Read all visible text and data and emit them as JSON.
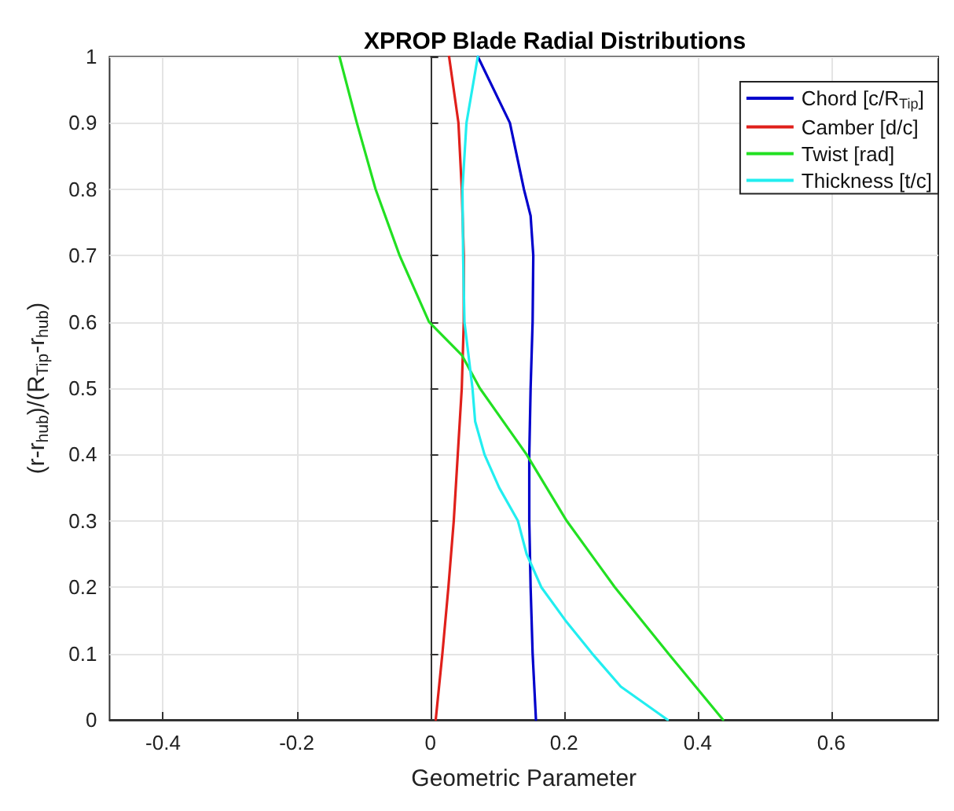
{
  "chart_data": {
    "type": "line",
    "title": "XPROP Blade Radial Distributions",
    "xlabel": "Geometric Parameter",
    "ylabel": "(r-r$_{hub}$)/(R$_{Tip}$-r$_{hub}$)",
    "xlim": [
      -0.48,
      0.76
    ],
    "xticks": [
      -0.4,
      -0.2,
      0,
      0.2,
      0.4,
      0.6
    ],
    "ylim": [
      0,
      1
    ],
    "yticks": [
      0,
      0.1,
      0.2,
      0.3,
      0.4,
      0.5,
      0.6,
      0.7,
      0.8,
      0.9,
      1
    ],
    "grid": true,
    "legend": "top right",
    "marker": "none",
    "line_style": "solid",
    "series": [
      {
        "name": "Chord [c/R$_{Tip}$]",
        "color": "#0000cc",
        "x": [
          0.158,
          0.153,
          0.15,
          0.148,
          0.148,
          0.15,
          0.153,
          0.154,
          0.15,
          0.14,
          0.119,
          0.071
        ],
        "values": [
          0,
          0.1,
          0.2,
          0.3,
          0.4,
          0.5,
          0.6,
          0.7,
          0.76,
          0.8,
          0.9,
          1
        ]
      },
      {
        "name": "Camber [d/c]",
        "color": "#e0201b",
        "x": [
          0.008,
          0.018,
          0.027,
          0.035,
          0.041,
          0.047,
          0.05,
          0.05,
          0.047,
          0.042,
          0.028
        ],
        "values": [
          0,
          0.1,
          0.2,
          0.3,
          0.4,
          0.5,
          0.6,
          0.7,
          0.8,
          0.9,
          1
        ]
      },
      {
        "name": "Twist [rad]",
        "color": "#22e022",
        "x": [
          0.438,
          0.356,
          0.276,
          0.204,
          0.144,
          0.074,
          0.047,
          -0.002,
          -0.046,
          -0.082,
          -0.11,
          -0.136
        ],
        "values": [
          0,
          0.1,
          0.2,
          0.3,
          0.4,
          0.5,
          0.55,
          0.6,
          0.7,
          0.8,
          0.9,
          1
        ]
      },
      {
        "name": "Thickness [t/c]",
        "color": "#22eef0",
        "x": [
          0.355,
          0.285,
          0.242,
          0.202,
          0.166,
          0.144,
          0.131,
          0.103,
          0.081,
          0.067,
          0.063,
          0.051,
          0.049,
          0.048,
          0.054,
          0.071
        ],
        "values": [
          0,
          0.05,
          0.1,
          0.15,
          0.2,
          0.25,
          0.3,
          0.35,
          0.4,
          0.45,
          0.5,
          0.6,
          0.7,
          0.8,
          0.9,
          1
        ]
      }
    ]
  }
}
